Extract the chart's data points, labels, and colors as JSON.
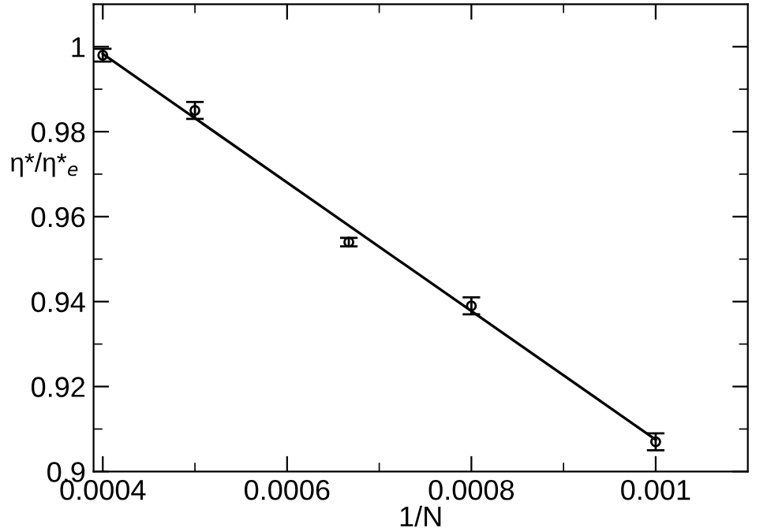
{
  "chart_data": {
    "type": "scatter",
    "xlabel": "1/N",
    "ylabel": "η*/η*$_{e}$",
    "series": [
      {
        "color": "#000000",
        "marker": "circle",
        "x": [
          0.0004,
          0.0005,
          0.000667,
          0.0008,
          0.001
        ],
        "values": [
          0.998,
          0.985,
          0.954,
          0.939,
          0.907
        ],
        "errors": [
          0.0015,
          0.002,
          0.001,
          0.002,
          0.002
        ]
      },
      {
        "type": "line",
        "color": "#000000",
        "marker": "none",
        "line_style": "solid",
        "x": [
          0.0004,
          0.001
        ],
        "values": [
          0.9983,
          0.9075
        ]
      }
    ],
    "xlim": [
      0.00039,
      0.0011
    ],
    "ylim": [
      0.9,
      1.01
    ],
    "xticks": [
      {
        "value": 0.0004,
        "label": "0.0004"
      },
      {
        "value": 0.0005,
        "label": null
      },
      {
        "value": 0.0006,
        "label": "0.0006"
      },
      {
        "value": 0.0007,
        "label": null
      },
      {
        "value": 0.0008,
        "label": "0.0008"
      },
      {
        "value": 0.0009,
        "label": null
      },
      {
        "value": 0.001,
        "label": "0.001"
      }
    ],
    "yticks": [
      {
        "value": 0.9,
        "label": "0.9"
      },
      {
        "value": 0.91,
        "label": null
      },
      {
        "value": 0.92,
        "label": "0.92"
      },
      {
        "value": 0.93,
        "label": null
      },
      {
        "value": 0.94,
        "label": "0.94"
      },
      {
        "value": 0.95,
        "label": null
      },
      {
        "value": 0.96,
        "label": "0.96"
      },
      {
        "value": 0.97,
        "label": null
      },
      {
        "value": 0.98,
        "label": "0.98"
      },
      {
        "value": 0.99,
        "label": null
      },
      {
        "value": 1,
        "label": "1"
      }
    ],
    "grid": false,
    "legend": false
  }
}
